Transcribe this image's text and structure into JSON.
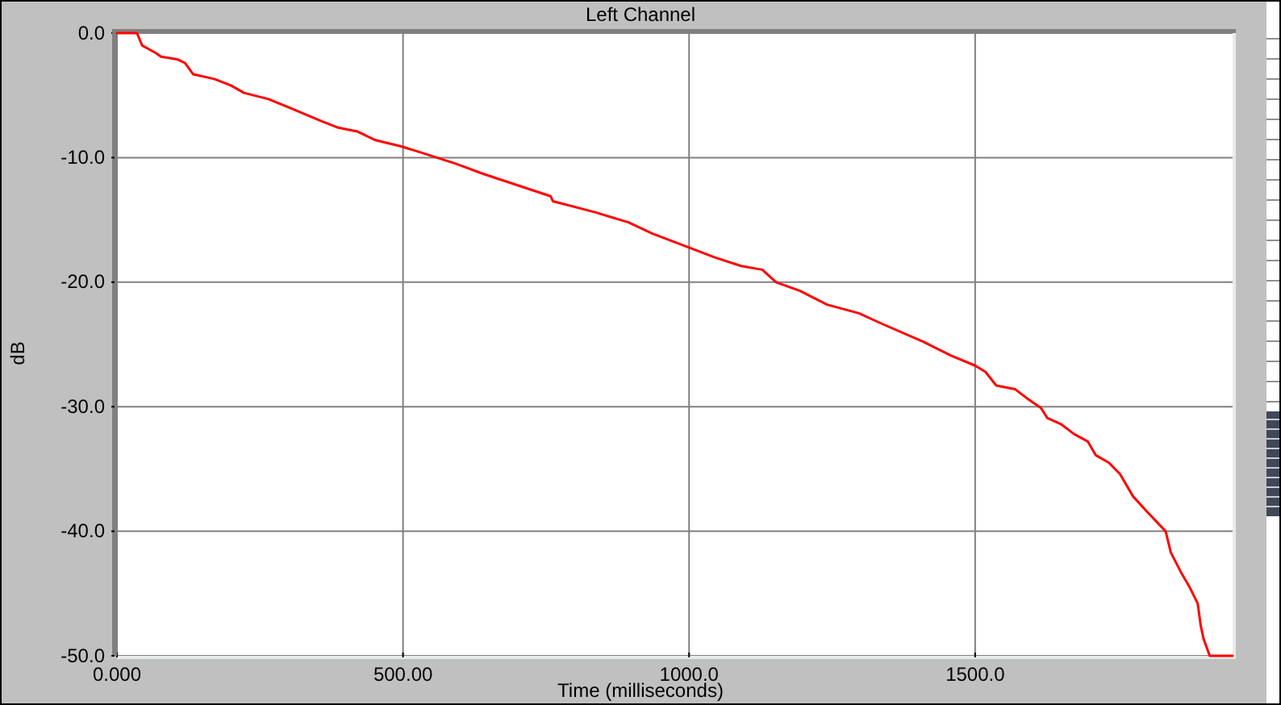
{
  "chart_data": {
    "type": "line",
    "title": "Left Channel",
    "xlabel": "Time (milliseconds)",
    "ylabel": "dB",
    "x": [
      0,
      35,
      44,
      68,
      77,
      105,
      119,
      133,
      171,
      199,
      222,
      265,
      302,
      359,
      387,
      420,
      452,
      497,
      546,
      593,
      640,
      725,
      758,
      762,
      837,
      894,
      936,
      999,
      1044,
      1091,
      1128,
      1152,
      1194,
      1241,
      1297,
      1335,
      1410,
      1458,
      1500,
      1518,
      1537,
      1570,
      1593,
      1615,
      1626,
      1650,
      1673,
      1697,
      1711,
      1734,
      1753,
      1776,
      1800,
      1833,
      1842,
      1861,
      1875,
      1889,
      1894,
      1899,
      1910,
      1950
    ],
    "series": [
      {
        "color": "#ff0000",
        "values": [
          0,
          0,
          -1.0,
          -1.6,
          -1.9,
          -2.1,
          -2.4,
          -3.3,
          -3.7,
          -4.2,
          -4.8,
          -5.3,
          -6.0,
          -7.1,
          -7.6,
          -7.9,
          -8.6,
          -9.1,
          -9.8,
          -10.5,
          -11.3,
          -12.6,
          -13.1,
          -13.5,
          -14.4,
          -15.2,
          -16.1,
          -17.2,
          -18.0,
          -18.7,
          -19.0,
          -20.0,
          -20.7,
          -21.8,
          -22.5,
          -23.3,
          -24.8,
          -25.9,
          -26.7,
          -27.2,
          -28.3,
          -28.6,
          -29.4,
          -30.1,
          -30.9,
          -31.4,
          -32.2,
          -32.8,
          -33.9,
          -34.5,
          -35.4,
          -37.2,
          -38.4,
          -40.0,
          -41.7,
          -43.4,
          -44.5,
          -45.8,
          -47.5,
          -48.6,
          -50,
          -50
        ]
      }
    ],
    "xlim": [
      0,
      1950
    ],
    "ylim": [
      -50,
      0
    ],
    "xticks": [
      {
        "value": 0,
        "label": "0.000"
      },
      {
        "value": 500,
        "label": "500.00"
      },
      {
        "value": 1000,
        "label": "1000.0"
      },
      {
        "value": 1500,
        "label": "1500.0"
      }
    ],
    "yticks": [
      {
        "value": -50,
        "label": "-50.0"
      },
      {
        "value": -40,
        "label": "-40.0"
      },
      {
        "value": -30,
        "label": "-30.0"
      },
      {
        "value": -20,
        "label": "-20.0"
      },
      {
        "value": -10,
        "label": "-10.0"
      },
      {
        "value": 0,
        "label": "0.0"
      }
    ],
    "grid": true
  }
}
